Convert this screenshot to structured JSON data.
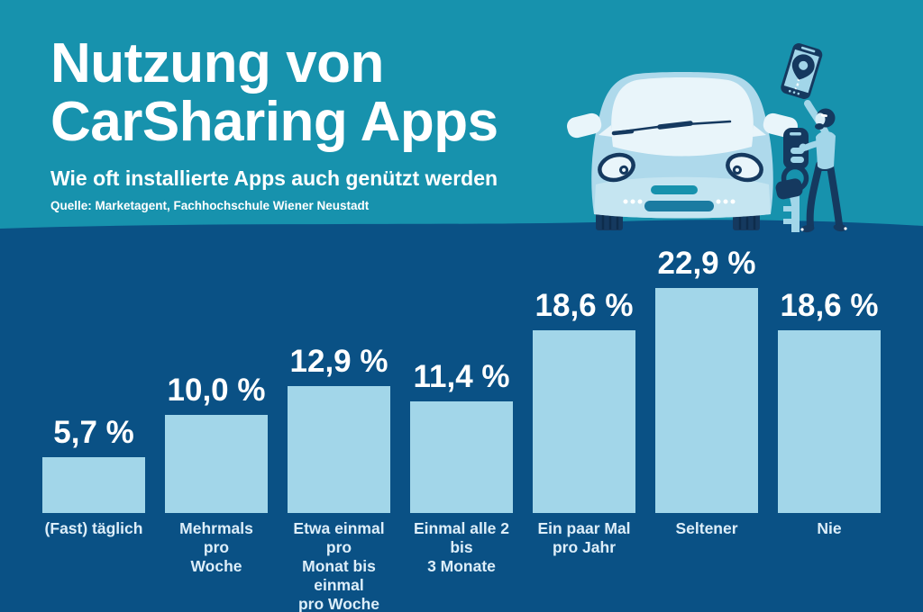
{
  "header": {
    "title": "Nutzung von\nCarSharing Apps",
    "subtitle": "Wie oft installierte Apps auch genützt werden",
    "source": "Quelle: Marketagent, Fachhochschule Wiener Neustadt"
  },
  "chart_data": {
    "type": "bar",
    "title": "Nutzung von CarSharing Apps",
    "subtitle": "Wie oft installierte Apps auch genützt werden",
    "categories": [
      "(Fast) täglich",
      "Mehrmals pro\nWoche",
      "Etwa einmal pro\nMonat bis einmal\npro Woche",
      "Einmal alle 2 bis\n3 Monate",
      "Ein paar Mal\npro Jahr",
      "Seltener",
      "Nie"
    ],
    "values": [
      5.7,
      10.0,
      12.9,
      11.4,
      18.6,
      22.9,
      18.6
    ],
    "value_labels": [
      "5,7 %",
      "10,0 %",
      "12,9 %",
      "11,4 %",
      "18,6 %",
      "22,9 %",
      "18,6 %"
    ],
    "xlabel": "",
    "ylabel": "",
    "ylim": [
      0,
      25
    ],
    "grid": false,
    "legend": false,
    "value_labels_position": "above-bars"
  },
  "colors": {
    "header_bg": "#1792ad",
    "chart_bg": "#0a5185",
    "bar": "#a2d6e9",
    "value_text": "#ffffff",
    "category_text": "#ddeef9",
    "navy": "#15395f",
    "car_body": "#aed9eb",
    "car_bumper": "#c5e5f1",
    "windshield": "#e9f5fa",
    "intake_teal": "#1b7ba1"
  },
  "illustration": {
    "description": "person holding smartphone with map pin and giant car key next to car front",
    "elements": [
      "car-front-icon",
      "smartphone-map-pin-icon",
      "car-key-icon",
      "person-icon"
    ]
  }
}
